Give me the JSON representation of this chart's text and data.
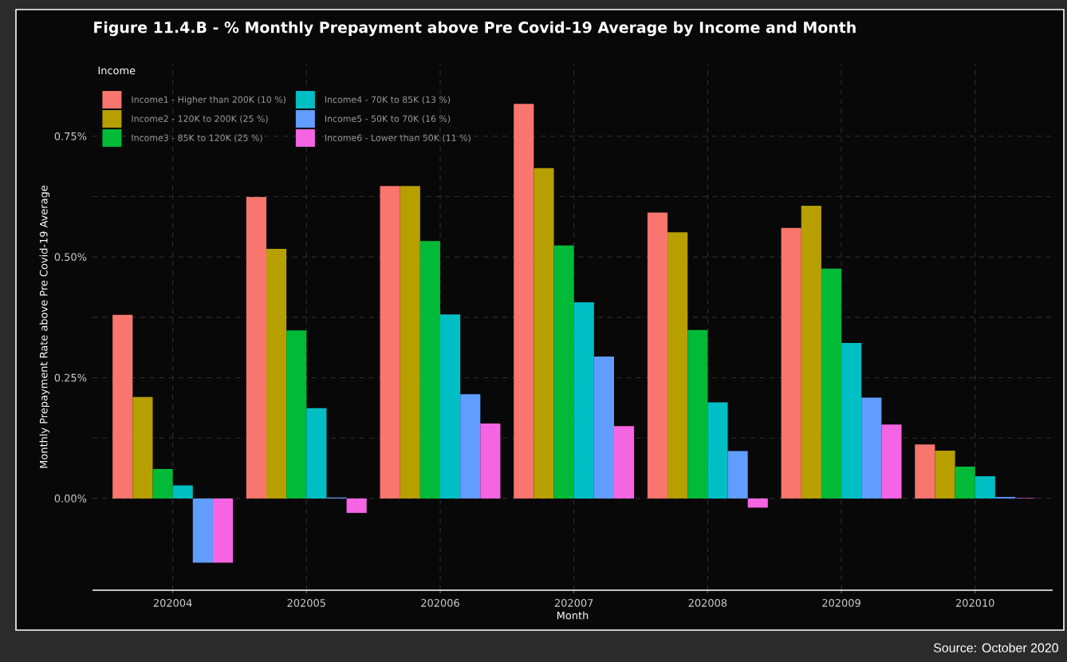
{
  "chart_data": {
    "type": "bar",
    "title": "Figure 11.4.B - % Monthly Prepayment above Pre Covid-19 Average by Income and Month",
    "xlabel": "Month",
    "ylabel": "Monthly Prepayment Rate above Pre Covid-19 Average",
    "legend_title": "Income",
    "annotations": [
      "Source: October 2020"
    ],
    "categories": [
      "202004",
      "202005",
      "202006",
      "202007",
      "202008",
      "202009",
      "202010"
    ],
    "ylim": [
      -0.19,
      0.9
    ],
    "yticks": [
      {
        "value": 0,
        "label": "0.00%"
      },
      {
        "value": 0.25,
        "label": "0.25%"
      },
      {
        "value": 0.5,
        "label": "0.50%"
      },
      {
        "value": 0.75,
        "label": "0.75%"
      }
    ],
    "grid": true,
    "legend": "top left",
    "series": [
      {
        "name": "Income1 - Higher than 200K (10 %)",
        "color": "#f8766d",
        "values": [
          0.38,
          0.624,
          0.647,
          0.817,
          0.592,
          0.56,
          0.112
        ]
      },
      {
        "name": "Income2 - 120K to 200K (25 %)",
        "color": "#b79f00",
        "values": [
          0.21,
          0.517,
          0.647,
          0.684,
          0.551,
          0.606,
          0.099
        ]
      },
      {
        "name": "Income3 - 85K to 120K (25 %)",
        "color": "#00ba38",
        "values": [
          0.061,
          0.348,
          0.533,
          0.524,
          0.349,
          0.476,
          0.066
        ]
      },
      {
        "name": "Income4 - 70K to 85K (13 %)",
        "color": "#00bfc4",
        "values": [
          0.027,
          0.187,
          0.381,
          0.406,
          0.199,
          0.322,
          0.046
        ]
      },
      {
        "name": "Income5 - 50K to 70K (16 %)",
        "color": "#619cff",
        "values": [
          -0.133,
          0.002,
          0.216,
          0.294,
          0.098,
          0.209,
          0.003
        ]
      },
      {
        "name": "Income6 - Lower than 50K (11 %)",
        "color": "#f564e3",
        "values": [
          -0.133,
          -0.03,
          0.155,
          0.15,
          -0.019,
          0.153,
          0.001
        ]
      }
    ]
  }
}
